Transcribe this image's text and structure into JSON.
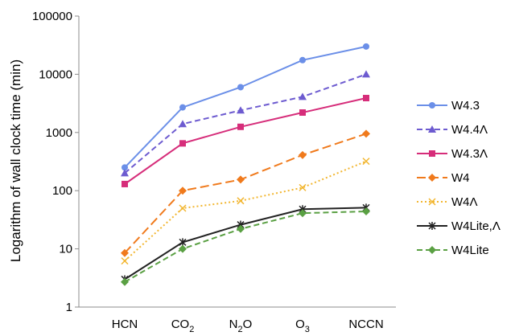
{
  "chart_data": {
    "type": "line",
    "ylabel": "Logarithm of wall clock time (min)",
    "yscale": "log",
    "ylim": [
      1,
      100000
    ],
    "yticks": [
      "1",
      "10",
      "100",
      "1000",
      "10000",
      "100000"
    ],
    "categories": [
      {
        "base": "HCN",
        "sub": ""
      },
      {
        "base": "CO",
        "sub": "2"
      },
      {
        "base": "N",
        "sub": "2",
        "rest": "O"
      },
      {
        "base": "O",
        "sub": "3"
      },
      {
        "base": "NCCN",
        "sub": ""
      }
    ],
    "legend_position": "right",
    "grid": false,
    "series": [
      {
        "name": "W4.3",
        "values": [
          250,
          2700,
          6000,
          17500,
          30000
        ],
        "color": "#6b8fe8",
        "marker": "circle",
        "dash": "solid"
      },
      {
        "name": "W4.4Λ",
        "values": [
          200,
          1400,
          2400,
          4100,
          10000
        ],
        "color": "#6d5bd0",
        "marker": "triangle",
        "dash": "dash"
      },
      {
        "name": "W4.3Λ",
        "values": [
          130,
          650,
          1250,
          2200,
          3900
        ],
        "color": "#d62d7a",
        "marker": "square",
        "dash": "solid"
      },
      {
        "name": "W4",
        "values": [
          8.5,
          100,
          155,
          410,
          950
        ],
        "color": "#f07a1c",
        "marker": "diamond",
        "dash": "longdash"
      },
      {
        "name": "W4Λ",
        "values": [
          6.2,
          50,
          67,
          113,
          320
        ],
        "color": "#f2b630",
        "marker": "x",
        "dash": "dot"
      },
      {
        "name": "W4Lite,Λ",
        "values": [
          3,
          13,
          26,
          48,
          51
        ],
        "color": "#222222",
        "marker": "star",
        "dash": "solid"
      },
      {
        "name": "W4Lite",
        "values": [
          2.7,
          10,
          22,
          41,
          44
        ],
        "color": "#5aa043",
        "marker": "diamond",
        "dash": "dash"
      }
    ]
  }
}
